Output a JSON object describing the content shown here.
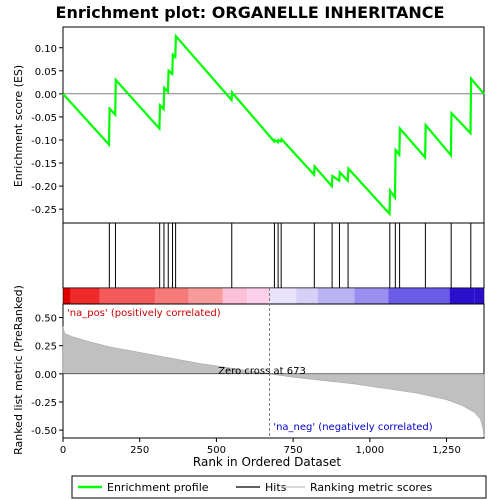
{
  "chart_data": {
    "type": "line",
    "title": "Enrichment plot: ORGANELLE INHERITANCE",
    "colors": {
      "enrichment_line": "#00ff00",
      "hits": "#000000",
      "ranking_fill": "#c0c0c0",
      "pos_text": "#cc0000",
      "neg_text": "#0000cc",
      "zero_cross_line": "#808080"
    },
    "top_panel": {
      "ylabel": "Enrichment score (ES)",
      "ylim": [
        -0.28,
        0.145
      ],
      "yticks": [
        0.1,
        0.05,
        0.0,
        -0.05,
        -0.1,
        -0.15,
        -0.2,
        -0.25
      ],
      "ytick_labels": [
        "0.10",
        "0.05",
        "0.00",
        "-0.05",
        "-0.10",
        "-0.15",
        "-0.20",
        "-0.25"
      ],
      "es_profile": [
        [
          0,
          0.0
        ],
        [
          150,
          -0.11
        ],
        [
          152,
          -0.032
        ],
        [
          170,
          -0.045
        ],
        [
          172,
          0.03
        ],
        [
          314,
          -0.075
        ],
        [
          316,
          -0.025
        ],
        [
          328,
          -0.033
        ],
        [
          330,
          0.013
        ],
        [
          342,
          0.005
        ],
        [
          344,
          0.05
        ],
        [
          356,
          0.043
        ],
        [
          358,
          0.085
        ],
        [
          366,
          0.08
        ],
        [
          368,
          0.125
        ],
        [
          549,
          -0.013
        ],
        [
          551,
          0.003
        ],
        [
          688,
          -0.103
        ],
        [
          690,
          -0.1
        ],
        [
          700,
          -0.105
        ],
        [
          702,
          -0.1
        ],
        [
          710,
          -0.103
        ],
        [
          712,
          -0.098
        ],
        [
          818,
          -0.175
        ],
        [
          820,
          -0.157
        ],
        [
          876,
          -0.2
        ],
        [
          878,
          -0.178
        ],
        [
          900,
          -0.188
        ],
        [
          902,
          -0.17
        ],
        [
          928,
          -0.188
        ],
        [
          930,
          -0.162
        ],
        [
          1064,
          -0.26
        ],
        [
          1066,
          -0.21
        ],
        [
          1082,
          -0.225
        ],
        [
          1084,
          -0.122
        ],
        [
          1096,
          -0.132
        ],
        [
          1098,
          -0.075
        ],
        [
          1180,
          -0.138
        ],
        [
          1182,
          -0.068
        ],
        [
          1264,
          -0.133
        ],
        [
          1266,
          -0.042
        ],
        [
          1328,
          -0.085
        ],
        [
          1330,
          0.033
        ],
        [
          1372,
          0.0
        ]
      ]
    },
    "hits": [
      151,
      171,
      315,
      329,
      343,
      357,
      367,
      550,
      689,
      701,
      711,
      819,
      877,
      901,
      929,
      1065,
      1083,
      1097,
      1181,
      1265,
      1329
    ],
    "bottom_panel": {
      "ylabel": "Ranked list metric (PreRanked)",
      "ylim": [
        -0.57,
        0.62
      ],
      "yticks": [
        0.5,
        0.25,
        0.0,
        -0.25,
        -0.5
      ],
      "ytick_labels": [
        "0.50",
        "0.25",
        "0.00",
        "-0.25",
        "-0.50"
      ],
      "ranking_curve": [
        [
          0,
          0.42
        ],
        [
          5,
          0.36
        ],
        [
          30,
          0.33
        ],
        [
          80,
          0.29
        ],
        [
          150,
          0.24
        ],
        [
          250,
          0.19
        ],
        [
          350,
          0.14
        ],
        [
          450,
          0.09
        ],
        [
          550,
          0.05
        ],
        [
          620,
          0.02
        ],
        [
          673,
          0.0
        ],
        [
          750,
          -0.03
        ],
        [
          850,
          -0.06
        ],
        [
          950,
          -0.09
        ],
        [
          1050,
          -0.13
        ],
        [
          1150,
          -0.17
        ],
        [
          1250,
          -0.23
        ],
        [
          1300,
          -0.28
        ],
        [
          1340,
          -0.34
        ],
        [
          1360,
          -0.4
        ],
        [
          1368,
          -0.48
        ],
        [
          1372,
          -0.56
        ]
      ],
      "pos_label": "'na_pos' (positively correlated)",
      "neg_label": "'na_neg' (negatively correlated)",
      "zero_cross_label": "Zero cross at 673",
      "zero_cross": 673
    },
    "xlabel": "Rank in Ordered Dataset",
    "xlim": [
      0,
      1372
    ],
    "xticks": [
      0,
      250,
      500,
      750,
      1000,
      1250
    ],
    "xtick_labels": [
      "0",
      "250",
      "500",
      "750",
      "1,000",
      "1,250"
    ],
    "legend": {
      "placement": "bottom",
      "entries": [
        {
          "label": "Enrichment profile",
          "kind": "line",
          "color": "#00ff00"
        },
        {
          "label": "Hits",
          "kind": "line",
          "color": "#000000"
        },
        {
          "label": "Ranking metric scores",
          "kind": "line",
          "color": "#c0c0c0"
        }
      ]
    }
  }
}
